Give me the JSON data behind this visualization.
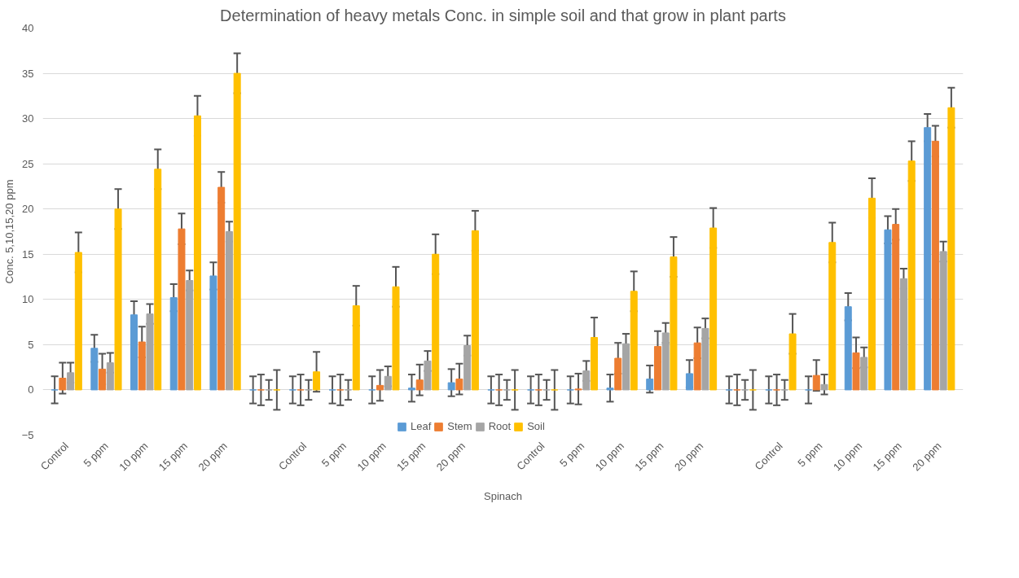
{
  "chart_data": {
    "type": "bar",
    "title": "Determination of heavy metals Conc. in simple soil and that grow in plant parts",
    "xlabel": "Spinach",
    "ylabel": "Conc. 5,10,15,20 ppm",
    "categories": [
      "Control",
      "5 ppm",
      "10 ppm",
      "15 ppm",
      "20 ppm",
      null,
      "Control",
      "5 ppm",
      "10 ppm",
      "15 ppm",
      "20 ppm",
      null,
      "Control",
      "5 ppm",
      "10 ppm",
      "15 ppm",
      "20 ppm",
      null,
      "Control",
      "5 ppm",
      "10 ppm",
      "15 ppm",
      "20 ppm"
    ],
    "series": [
      {
        "name": "Leaf",
        "color": "#5b9bd5",
        "values": [
          0,
          4.6,
          8.3,
          10.2,
          12.6,
          0,
          0,
          0,
          0,
          0.2,
          0.8,
          0,
          0,
          0,
          0.2,
          1.2,
          1.8,
          0,
          0,
          0,
          9.2,
          17.7,
          29.0
        ],
        "errors": [
          1.5,
          1.5,
          1.5,
          1.5,
          1.5,
          1.5,
          1.5,
          1.5,
          1.5,
          1.5,
          1.5,
          1.5,
          1.5,
          1.5,
          1.5,
          1.5,
          1.5,
          1.5,
          1.5,
          1.5,
          1.5,
          1.5,
          1.5
        ]
      },
      {
        "name": "Stem",
        "color": "#ed7d31",
        "values": [
          1.3,
          2.3,
          5.3,
          17.8,
          22.4,
          0,
          0,
          0,
          0.5,
          1.1,
          1.2,
          0,
          0,
          0.1,
          3.5,
          4.8,
          5.2,
          0,
          0,
          1.6,
          4.1,
          18.3,
          27.5
        ],
        "errors": [
          1.7,
          1.7,
          1.7,
          1.7,
          1.7,
          1.7,
          1.7,
          1.7,
          1.7,
          1.7,
          1.7,
          1.7,
          1.7,
          1.7,
          1.7,
          1.7,
          1.7,
          1.7,
          1.7,
          1.7,
          1.7,
          1.7,
          1.7
        ]
      },
      {
        "name": "Root",
        "color": "#a5a5a5",
        "values": [
          1.9,
          3.0,
          8.4,
          12.1,
          17.5,
          0,
          0,
          0,
          1.5,
          3.2,
          4.9,
          0,
          0,
          2.1,
          5.1,
          6.3,
          6.8,
          0,
          0,
          0.6,
          3.6,
          12.3,
          15.3
        ],
        "errors": [
          1.1,
          1.1,
          1.1,
          1.1,
          1.1,
          1.1,
          1.1,
          1.1,
          1.1,
          1.1,
          1.1,
          1.1,
          1.1,
          1.1,
          1.1,
          1.1,
          1.1,
          1.1,
          1.1,
          1.1,
          1.1,
          1.1,
          1.1
        ]
      },
      {
        "name": "Soil",
        "color": "#ffc000",
        "values": [
          15.2,
          20.0,
          24.4,
          30.3,
          35.0,
          0,
          2.0,
          9.3,
          11.4,
          15.0,
          17.6,
          0,
          0,
          5.8,
          10.9,
          14.7,
          17.9,
          0,
          6.2,
          16.3,
          21.2,
          25.3,
          31.2
        ],
        "errors": [
          2.2,
          2.2,
          2.2,
          2.2,
          2.2,
          2.2,
          2.2,
          2.2,
          2.2,
          2.2,
          2.2,
          2.2,
          2.2,
          2.2,
          2.2,
          2.2,
          2.2,
          2.2,
          2.2,
          2.2,
          2.2,
          2.2,
          2.2
        ]
      }
    ],
    "ylim": [
      -5,
      40
    ],
    "yticks": [
      -5,
      0,
      5,
      10,
      15,
      20,
      25,
      30,
      35,
      40
    ],
    "grid": "y",
    "legend": "bottom"
  }
}
